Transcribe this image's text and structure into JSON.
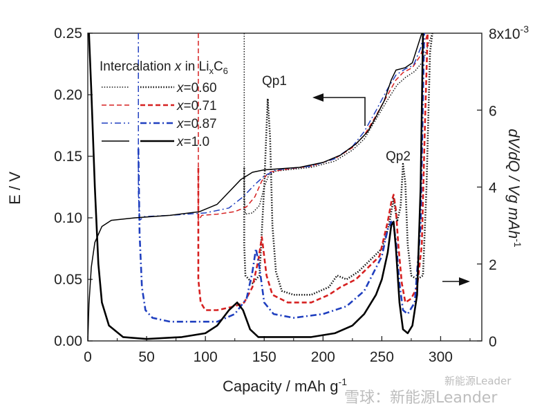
{
  "chart_data": {
    "type": "line",
    "xlabel": "Capacity / mAh g",
    "xlabel_sup": "-1",
    "ylabel_left": "E / V",
    "ylabel_right": "dV/dQ / Vg mAh",
    "ylabel_right_sup": "-1",
    "xlim": [
      0,
      335
    ],
    "ylim_left": [
      0,
      0.25
    ],
    "ylim_right": [
      0,
      0.008
    ],
    "x_ticks": [
      "0",
      "50",
      "100",
      "150",
      "200",
      "250",
      "300"
    ],
    "y_left_ticks": [
      "0.00",
      "0.05",
      "0.10",
      "0.15",
      "0.20",
      "0.25"
    ],
    "y_right_ticks": [
      "0",
      "2",
      "4",
      "6"
    ],
    "y_right_top_label": "8x10",
    "y_right_top_sup": "-3",
    "legend_title_pre": "Intercalation ",
    "legend_title_var": "x",
    "legend_title_mid": " in Li",
    "legend_title_sub1": "x",
    "legend_title_c": "C",
    "legend_title_sub2": "6",
    "annotations": {
      "qp1": "Qp1",
      "qp2": "Qp2"
    },
    "series": [
      {
        "name": "x=0.60",
        "var": "x",
        "label_value": "=0.60",
        "color": "#111111",
        "voltage": [
          [
            133,
            0.25
          ],
          [
            133,
            0.115
          ],
          [
            134,
            0.103
          ],
          [
            140,
            0.104
          ],
          [
            146,
            0.11
          ],
          [
            150,
            0.125
          ],
          [
            154,
            0.135
          ],
          [
            160,
            0.138
          ],
          [
            190,
            0.141
          ],
          [
            210,
            0.146
          ],
          [
            225,
            0.155
          ],
          [
            235,
            0.164
          ],
          [
            245,
            0.18
          ],
          [
            255,
            0.196
          ],
          [
            263,
            0.208
          ],
          [
            270,
            0.214
          ],
          [
            278,
            0.219
          ],
          [
            285,
            0.227
          ],
          [
            291,
            0.245
          ],
          [
            293,
            0.25
          ]
        ],
        "dvdq": [
          [
            133,
            0.0045
          ],
          [
            133,
            0.0025
          ],
          [
            134,
            0.0017
          ],
          [
            140,
            0.0015
          ],
          [
            146,
            0.0017
          ],
          [
            150,
            0.004
          ],
          [
            153,
            0.0063
          ],
          [
            155,
            0.0053
          ],
          [
            157,
            0.003
          ],
          [
            160,
            0.0018
          ],
          [
            165,
            0.0013
          ],
          [
            175,
            0.0012
          ],
          [
            190,
            0.0012
          ],
          [
            205,
            0.0014
          ],
          [
            212,
            0.0017
          ],
          [
            220,
            0.0016
          ],
          [
            230,
            0.0018
          ],
          [
            240,
            0.0021
          ],
          [
            250,
            0.0024
          ],
          [
            256,
            0.003
          ],
          [
            260,
            0.0037
          ],
          [
            263,
            0.0031
          ],
          [
            266,
            0.0035
          ],
          [
            268,
            0.0046
          ],
          [
            270,
            0.0041
          ],
          [
            272,
            0.0025
          ],
          [
            275,
            0.0017
          ],
          [
            280,
            0.0016
          ],
          [
            285,
            0.0017
          ],
          [
            288,
            0.004
          ],
          [
            291,
            0.0075
          ],
          [
            293,
            0.008
          ]
        ]
      },
      {
        "name": "x=0.71",
        "var": "x",
        "label_value": "=0.71",
        "color": "#d62020",
        "voltage": [
          [
            94,
            0.25
          ],
          [
            94,
            0.098
          ],
          [
            97,
            0.102
          ],
          [
            110,
            0.103
          ],
          [
            125,
            0.105
          ],
          [
            135,
            0.109
          ],
          [
            142,
            0.117
          ],
          [
            148,
            0.13
          ],
          [
            154,
            0.137
          ],
          [
            165,
            0.139
          ],
          [
            190,
            0.142
          ],
          [
            210,
            0.148
          ],
          [
            225,
            0.157
          ],
          [
            235,
            0.167
          ],
          [
            245,
            0.183
          ],
          [
            255,
            0.2
          ],
          [
            262,
            0.212
          ],
          [
            268,
            0.218
          ],
          [
            276,
            0.222
          ],
          [
            283,
            0.232
          ],
          [
            289,
            0.25
          ]
        ],
        "dvdq": [
          [
            94,
            0.0045
          ],
          [
            94,
            0.0016
          ],
          [
            96,
            0.001
          ],
          [
            100,
            0.0008
          ],
          [
            110,
            0.0008
          ],
          [
            125,
            0.0009
          ],
          [
            133,
            0.001
          ],
          [
            140,
            0.0014
          ],
          [
            145,
            0.0021
          ],
          [
            148,
            0.0027
          ],
          [
            152,
            0.0017
          ],
          [
            157,
            0.0012
          ],
          [
            170,
            0.001
          ],
          [
            190,
            0.001
          ],
          [
            205,
            0.0012
          ],
          [
            215,
            0.0014
          ],
          [
            228,
            0.0016
          ],
          [
            238,
            0.0019
          ],
          [
            248,
            0.0022
          ],
          [
            255,
            0.0031
          ],
          [
            258,
            0.0036
          ],
          [
            260,
            0.0038
          ],
          [
            262,
            0.0034
          ],
          [
            264,
            0.0025
          ],
          [
            267,
            0.0015
          ],
          [
            270,
            0.001
          ],
          [
            275,
            0.0011
          ],
          [
            280,
            0.0014
          ],
          [
            284,
            0.0025
          ],
          [
            287,
            0.006
          ],
          [
            289,
            0.008
          ]
        ]
      },
      {
        "name": "x=0.87",
        "var": "x",
        "label_value": "=0.87",
        "color": "#1f3fbf",
        "voltage": [
          [
            43,
            0.25
          ],
          [
            43,
            0.12
          ],
          [
            44,
            0.098
          ],
          [
            48,
            0.101
          ],
          [
            70,
            0.102
          ],
          [
            100,
            0.104
          ],
          [
            120,
            0.108
          ],
          [
            132,
            0.117
          ],
          [
            142,
            0.127
          ],
          [
            150,
            0.134
          ],
          [
            160,
            0.139
          ],
          [
            190,
            0.142
          ],
          [
            210,
            0.148
          ],
          [
            225,
            0.158
          ],
          [
            235,
            0.17
          ],
          [
            245,
            0.187
          ],
          [
            255,
            0.205
          ],
          [
            262,
            0.216
          ],
          [
            270,
            0.221
          ],
          [
            277,
            0.224
          ],
          [
            283,
            0.238
          ],
          [
            286,
            0.25
          ]
        ],
        "dvdq": [
          [
            43,
            0.005
          ],
          [
            44,
            0.0028
          ],
          [
            46,
            0.0014
          ],
          [
            49,
            0.0008
          ],
          [
            55,
            0.0006
          ],
          [
            70,
            0.0005
          ],
          [
            90,
            0.0005
          ],
          [
            110,
            0.0005
          ],
          [
            125,
            0.0007
          ],
          [
            135,
            0.0011
          ],
          [
            140,
            0.0018
          ],
          [
            143,
            0.0024
          ],
          [
            146,
            0.0019
          ],
          [
            150,
            0.001
          ],
          [
            158,
            0.0007
          ],
          [
            175,
            0.0006
          ],
          [
            200,
            0.0007
          ],
          [
            220,
            0.0009
          ],
          [
            235,
            0.0013
          ],
          [
            245,
            0.0019
          ],
          [
            250,
            0.0022
          ],
          [
            255,
            0.0029
          ],
          [
            258,
            0.0031
          ],
          [
            260,
            0.003
          ],
          [
            262,
            0.0026
          ],
          [
            265,
            0.0015
          ],
          [
            268,
            0.0008
          ],
          [
            272,
            0.0007
          ],
          [
            278,
            0.001
          ],
          [
            283,
            0.003
          ],
          [
            286,
            0.008
          ]
        ]
      },
      {
        "name": "x=1.0",
        "var": "x",
        "label_value": "=1.0",
        "color": "#000000",
        "voltage": [
          [
            0,
            0.0
          ],
          [
            1,
            0.03
          ],
          [
            3,
            0.06
          ],
          [
            6,
            0.08
          ],
          [
            12,
            0.093
          ],
          [
            20,
            0.098
          ],
          [
            40,
            0.1
          ],
          [
            70,
            0.102
          ],
          [
            95,
            0.105
          ],
          [
            110,
            0.111
          ],
          [
            120,
            0.121
          ],
          [
            130,
            0.131
          ],
          [
            140,
            0.137
          ],
          [
            150,
            0.139
          ],
          [
            180,
            0.141
          ],
          [
            200,
            0.145
          ],
          [
            215,
            0.151
          ],
          [
            228,
            0.16
          ],
          [
            238,
            0.17
          ],
          [
            245,
            0.182
          ],
          [
            252,
            0.195
          ],
          [
            258,
            0.212
          ],
          [
            262,
            0.22
          ],
          [
            270,
            0.222
          ],
          [
            276,
            0.226
          ],
          [
            280,
            0.238
          ],
          [
            284,
            0.25
          ]
        ],
        "dvdq": [
          [
            1,
            0.008
          ],
          [
            3,
            0.0065
          ],
          [
            6,
            0.004
          ],
          [
            9,
            0.002
          ],
          [
            12,
            0.001
          ],
          [
            18,
            0.0004
          ],
          [
            30,
            0.0001
          ],
          [
            50,
            5e-05
          ],
          [
            80,
            0.0001
          ],
          [
            100,
            0.0002
          ],
          [
            110,
            0.0004
          ],
          [
            120,
            0.0008
          ],
          [
            127,
            0.001
          ],
          [
            132,
            0.0008
          ],
          [
            138,
            0.0003
          ],
          [
            145,
            0.0001
          ],
          [
            160,
            0.0001
          ],
          [
            190,
            0.0001
          ],
          [
            210,
            0.0002
          ],
          [
            225,
            0.0004
          ],
          [
            235,
            0.0007
          ],
          [
            245,
            0.0012
          ],
          [
            250,
            0.0016
          ],
          [
            255,
            0.0023
          ],
          [
            258,
            0.003
          ],
          [
            260,
            0.0031
          ],
          [
            262,
            0.0024
          ],
          [
            265,
            0.001
          ],
          [
            268,
            0.0003
          ],
          [
            272,
            0.0002
          ],
          [
            276,
            0.0004
          ],
          [
            280,
            0.0012
          ],
          [
            283,
            0.004
          ],
          [
            285,
            0.008
          ]
        ]
      }
    ]
  },
  "watermark": {
    "small_text": "新能源Leader",
    "large_text": "雪球：新能源Leander"
  }
}
